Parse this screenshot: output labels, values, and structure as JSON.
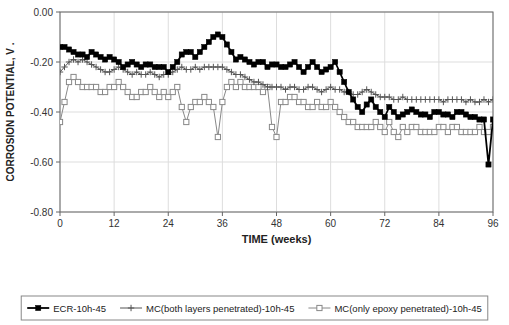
{
  "chart_data": {
    "type": "line",
    "xlabel": "TIME (weeks)",
    "ylabel": "CORROSION POTENTIAL, V .",
    "x": [
      0,
      1,
      2,
      3,
      4,
      5,
      6,
      7,
      8,
      9,
      10,
      11,
      12,
      13,
      14,
      15,
      16,
      17,
      18,
      19,
      20,
      21,
      22,
      23,
      24,
      25,
      26,
      27,
      28,
      29,
      30,
      31,
      32,
      33,
      34,
      35,
      36,
      37,
      38,
      39,
      40,
      41,
      42,
      43,
      44,
      45,
      46,
      47,
      48,
      49,
      50,
      51,
      52,
      53,
      54,
      55,
      56,
      57,
      58,
      59,
      60,
      61,
      62,
      63,
      64,
      65,
      66,
      67,
      68,
      69,
      70,
      71,
      72,
      73,
      74,
      75,
      76,
      77,
      78,
      79,
      80,
      81,
      82,
      83,
      84,
      85,
      86,
      87,
      88,
      89,
      90,
      91,
      92,
      93,
      94,
      95,
      96
    ],
    "series": [
      {
        "name": "ECR-10h-45",
        "color": "#000000",
        "marker": "square",
        "values": [
          -0.14,
          -0.14,
          -0.15,
          -0.16,
          -0.17,
          -0.17,
          -0.18,
          -0.16,
          -0.17,
          -0.18,
          -0.19,
          -0.18,
          -0.19,
          -0.2,
          -0.22,
          -0.21,
          -0.2,
          -0.21,
          -0.22,
          -0.21,
          -0.21,
          -0.22,
          -0.22,
          -0.22,
          -0.24,
          -0.22,
          -0.2,
          -0.17,
          -0.16,
          -0.16,
          -0.18,
          -0.16,
          -0.14,
          -0.12,
          -0.1,
          -0.09,
          -0.1,
          -0.13,
          -0.16,
          -0.19,
          -0.18,
          -0.19,
          -0.2,
          -0.21,
          -0.2,
          -0.2,
          -0.22,
          -0.21,
          -0.21,
          -0.22,
          -0.22,
          -0.21,
          -0.2,
          -0.22,
          -0.24,
          -0.22,
          -0.2,
          -0.22,
          -0.24,
          -0.23,
          -0.22,
          -0.2,
          -0.24,
          -0.28,
          -0.32,
          -0.35,
          -0.38,
          -0.4,
          -0.37,
          -0.35,
          -0.38,
          -0.4,
          -0.42,
          -0.38,
          -0.4,
          -0.42,
          -0.41,
          -0.4,
          -0.39,
          -0.4,
          -0.41,
          -0.41,
          -0.42,
          -0.4,
          -0.4,
          -0.41,
          -0.41,
          -0.42,
          -0.4,
          -0.4,
          -0.41,
          -0.42,
          -0.42,
          -0.43,
          -0.43,
          -0.61,
          -0.43
        ]
      },
      {
        "name": "MC(both layers penetrated)-10h-45",
        "color": "#555555",
        "marker": "plus",
        "values": [
          -0.24,
          -0.22,
          -0.2,
          -0.19,
          -0.2,
          -0.19,
          -0.2,
          -0.21,
          -0.22,
          -0.23,
          -0.24,
          -0.24,
          -0.23,
          -0.22,
          -0.23,
          -0.24,
          -0.25,
          -0.24,
          -0.25,
          -0.25,
          -0.24,
          -0.25,
          -0.26,
          -0.25,
          -0.25,
          -0.24,
          -0.23,
          -0.22,
          -0.23,
          -0.23,
          -0.22,
          -0.23,
          -0.22,
          -0.22,
          -0.22,
          -0.22,
          -0.22,
          -0.23,
          -0.24,
          -0.25,
          -0.25,
          -0.26,
          -0.27,
          -0.28,
          -0.28,
          -0.29,
          -0.3,
          -0.3,
          -0.3,
          -0.3,
          -0.31,
          -0.3,
          -0.3,
          -0.31,
          -0.31,
          -0.3,
          -0.3,
          -0.31,
          -0.32,
          -0.31,
          -0.3,
          -0.31,
          -0.31,
          -0.32,
          -0.32,
          -0.33,
          -0.33,
          -0.32,
          -0.31,
          -0.32,
          -0.33,
          -0.34,
          -0.34,
          -0.34,
          -0.35,
          -0.35,
          -0.34,
          -0.35,
          -0.35,
          -0.35,
          -0.35,
          -0.35,
          -0.35,
          -0.35,
          -0.35,
          -0.36,
          -0.35,
          -0.35,
          -0.35,
          -0.35,
          -0.36,
          -0.35,
          -0.36,
          -0.36,
          -0.35,
          -0.36,
          -0.35
        ]
      },
      {
        "name": "MC(only epoxy penetrated)-10h-45",
        "color": "#888888",
        "marker": "open-square",
        "values": [
          -0.44,
          -0.36,
          -0.28,
          -0.26,
          -0.28,
          -0.3,
          -0.3,
          -0.3,
          -0.3,
          -0.32,
          -0.32,
          -0.3,
          -0.3,
          -0.28,
          -0.3,
          -0.32,
          -0.34,
          -0.34,
          -0.32,
          -0.32,
          -0.3,
          -0.32,
          -0.34,
          -0.32,
          -0.34,
          -0.32,
          -0.3,
          -0.38,
          -0.44,
          -0.38,
          -0.36,
          -0.36,
          -0.34,
          -0.36,
          -0.38,
          -0.5,
          -0.36,
          -0.3,
          -0.28,
          -0.3,
          -0.28,
          -0.3,
          -0.3,
          -0.3,
          -0.3,
          -0.32,
          -0.3,
          -0.46,
          -0.5,
          -0.36,
          -0.36,
          -0.34,
          -0.34,
          -0.36,
          -0.36,
          -0.38,
          -0.38,
          -0.36,
          -0.38,
          -0.38,
          -0.36,
          -0.38,
          -0.4,
          -0.42,
          -0.44,
          -0.44,
          -0.46,
          -0.46,
          -0.46,
          -0.46,
          -0.44,
          -0.46,
          -0.48,
          -0.44,
          -0.48,
          -0.5,
          -0.46,
          -0.48,
          -0.46,
          -0.46,
          -0.48,
          -0.48,
          -0.48,
          -0.48,
          -0.46,
          -0.46,
          -0.48,
          -0.46,
          -0.46,
          -0.48,
          -0.48,
          -0.48,
          -0.48,
          -0.46,
          -0.48,
          -0.48,
          -0.46
        ]
      }
    ],
    "xlim": [
      0,
      96
    ],
    "ylim": [
      -0.8,
      0.0
    ],
    "xticks": [
      0,
      12,
      24,
      36,
      48,
      60,
      72,
      84,
      96
    ],
    "yticks": [
      {
        "value": 0.0,
        "label": "0.00"
      },
      {
        "value": -0.2,
        "label": "-0.20"
      },
      {
        "value": -0.4,
        "label": "-0.40"
      },
      {
        "value": -0.6,
        "label": "-0.60"
      },
      {
        "value": -0.8,
        "label": "-0.80"
      }
    ],
    "grid": true,
    "legend": "bottom"
  }
}
